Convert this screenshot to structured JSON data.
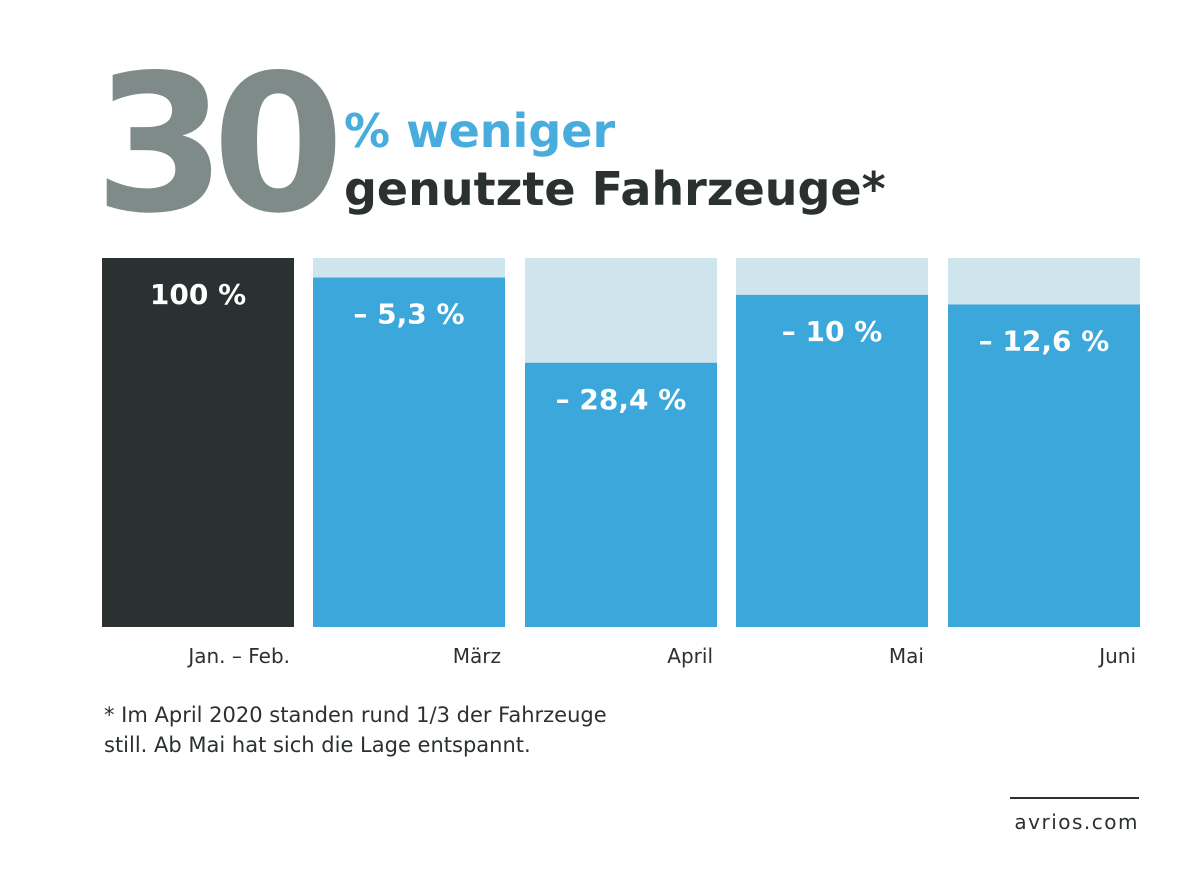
{
  "header": {
    "big_number": "30",
    "line1": "% weniger",
    "line2": "genutzte Fahrzeuge*"
  },
  "chart_data": {
    "type": "bar",
    "categories": [
      "Jan. – Feb.",
      "März",
      "April",
      "Mai",
      "Juni"
    ],
    "values": [
      100,
      94.7,
      71.6,
      90,
      87.4
    ],
    "value_labels": [
      "100 %",
      "– 5,3 %",
      "– 28,4 %",
      "– 10 %",
      "– 12,6 %"
    ],
    "ylim": [
      0,
      100
    ],
    "grid": false,
    "legend": "none",
    "colors": {
      "baseline": "#2b3130",
      "bar": "#3ba7da",
      "background_bar": "#cfe5ee",
      "label": "#ffffff",
      "axis_text": "#2b3130"
    }
  },
  "footnote": "* Im April 2020 standen rund 1/3 der Fahrzeuge\n   still. Ab Mai hat sich die Lage entspannt.",
  "brand": {
    "url": "avrios.com"
  }
}
